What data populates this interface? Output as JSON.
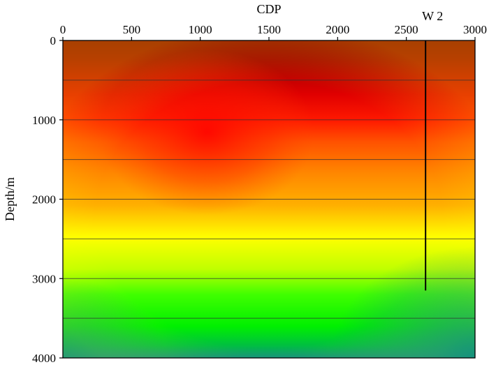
{
  "chart_data": {
    "type": "heatmap",
    "title": "",
    "xlabel": "CDP",
    "ylabel": "Depth/m",
    "xlim": [
      0,
      3000
    ],
    "ylim": [
      0,
      4000
    ],
    "x_axis_position": "top",
    "y_inverted": true,
    "xticks": [
      "0",
      "500",
      "1000",
      "1500",
      "2000",
      "2500",
      "3000"
    ],
    "yticks": [
      "0",
      "1000",
      "2000",
      "3000",
      "4000"
    ],
    "horizontal_gridlines": [
      500,
      1000,
      1500,
      2000,
      2500,
      3000,
      3500
    ],
    "colormap": [
      "#8b0000",
      "#ff0000",
      "#ff8c00",
      "#ffff00",
      "#00ff00",
      "#108f80"
    ],
    "well": {
      "label": "W 2",
      "cdp": 2640,
      "depth_top": 0,
      "depth_bottom": 3150
    }
  }
}
